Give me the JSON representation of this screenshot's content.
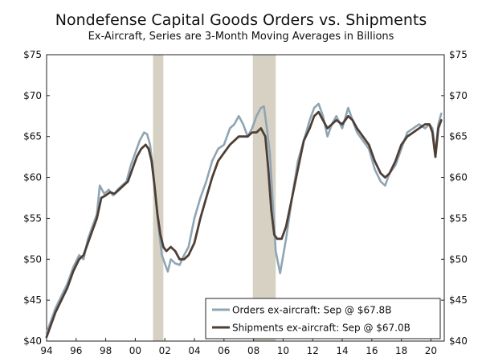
{
  "chart_data": {
    "type": "line",
    "title": "Nondefense Capital Goods Orders vs. Shipments",
    "subtitle": "Ex-Aircraft, Series are 3-Month Moving Averages in Billions",
    "xlabel": "",
    "ylabel": "",
    "xlim": [
      1994,
      2020.9
    ],
    "ylim": [
      40,
      75
    ],
    "y_ticks": [
      40,
      45,
      50,
      55,
      60,
      65,
      70,
      75
    ],
    "y_tick_labels": [
      "$40",
      "$45",
      "$50",
      "$55",
      "$60",
      "$65",
      "$70",
      "$75"
    ],
    "x_ticks": [
      1994,
      1996,
      1998,
      2000,
      2002,
      2004,
      2006,
      2008,
      2010,
      2012,
      2014,
      2016,
      2018,
      2020
    ],
    "x_tick_labels": [
      "94",
      "96",
      "98",
      "00",
      "02",
      "04",
      "06",
      "08",
      "10",
      "12",
      "14",
      "16",
      "18",
      "20"
    ],
    "recessions": [
      [
        2001.2,
        2001.9
      ],
      [
        2007.95,
        2009.5
      ]
    ],
    "legend_position": "bottom-right",
    "series": [
      {
        "name": "Orders ex-aircraft: Sep @ $67.8B",
        "color": "#8fa5b4",
        "x": [
          1994.0,
          1994.3,
          1994.6,
          1995.0,
          1995.4,
          1995.8,
          1996.2,
          1996.5,
          1996.8,
          1997.1,
          1997.4,
          1997.6,
          1997.9,
          1998.2,
          1998.5,
          1998.8,
          1999.1,
          1999.4,
          1999.7,
          2000.0,
          2000.3,
          2000.6,
          2000.8,
          2001.0,
          2001.2,
          2001.4,
          2001.6,
          2001.8,
          2002.0,
          2002.2,
          2002.4,
          2002.7,
          2003.0,
          2003.3,
          2003.6,
          2004.0,
          2004.4,
          2004.8,
          2005.2,
          2005.6,
          2006.0,
          2006.4,
          2006.7,
          2007.0,
          2007.3,
          2007.6,
          2007.9,
          2008.2,
          2008.5,
          2008.7,
          2008.9,
          2009.1,
          2009.3,
          2009.5,
          2009.8,
          2010.2,
          2010.6,
          2011.0,
          2011.4,
          2011.8,
          2012.1,
          2012.4,
          2012.7,
          2013.0,
          2013.3,
          2013.6,
          2014.0,
          2014.4,
          2014.7,
          2015.0,
          2015.4,
          2015.8,
          2016.2,
          2016.6,
          2016.9,
          2017.2,
          2017.6,
          2018.0,
          2018.4,
          2018.8,
          2019.2,
          2019.6,
          2019.9,
          2020.1,
          2020.3,
          2020.5,
          2020.7
        ],
        "values": [
          41.0,
          42.5,
          44.0,
          45.5,
          47.0,
          49.0,
          50.5,
          50.0,
          52.5,
          54.0,
          55.5,
          59.0,
          58.0,
          58.5,
          57.8,
          58.5,
          59.0,
          59.5,
          61.5,
          63.0,
          64.5,
          65.5,
          65.3,
          64.0,
          61.0,
          57.0,
          53.5,
          50.5,
          49.5,
          48.5,
          50.0,
          49.5,
          49.3,
          50.5,
          51.5,
          55.0,
          57.5,
          59.5,
          62.0,
          63.5,
          64.0,
          66.0,
          66.5,
          67.5,
          66.5,
          65.0,
          66.0,
          67.5,
          68.5,
          68.7,
          66.0,
          63.0,
          57.0,
          51.0,
          48.3,
          52.5,
          57.5,
          62.0,
          64.5,
          67.0,
          68.5,
          69.0,
          67.5,
          65.0,
          66.5,
          67.5,
          66.0,
          68.5,
          67.0,
          65.5,
          64.5,
          63.5,
          61.0,
          59.5,
          59.0,
          60.5,
          61.5,
          63.5,
          65.5,
          66.0,
          66.5,
          66.0,
          66.5,
          66.0,
          63.0,
          66.5,
          67.8
        ]
      },
      {
        "name": "Shipments ex-aircraft: Sep @ $67.0B",
        "color": "#4e3f36",
        "x": [
          1994.0,
          1994.3,
          1994.6,
          1995.0,
          1995.4,
          1995.8,
          1996.2,
          1996.5,
          1996.8,
          1997.1,
          1997.4,
          1997.7,
          1998.0,
          1998.3,
          1998.6,
          1998.9,
          1999.2,
          1999.5,
          1999.8,
          2000.1,
          2000.4,
          2000.7,
          2000.9,
          2001.1,
          2001.3,
          2001.5,
          2001.7,
          2001.9,
          2002.1,
          2002.4,
          2002.7,
          2003.0,
          2003.3,
          2003.6,
          2004.0,
          2004.4,
          2004.8,
          2005.2,
          2005.6,
          2006.0,
          2006.4,
          2006.7,
          2007.0,
          2007.3,
          2007.6,
          2007.9,
          2008.2,
          2008.5,
          2008.8,
          2009.0,
          2009.2,
          2009.4,
          2009.6,
          2009.9,
          2010.2,
          2010.6,
          2011.0,
          2011.4,
          2011.8,
          2012.1,
          2012.4,
          2012.7,
          2013.0,
          2013.3,
          2013.6,
          2014.0,
          2014.4,
          2014.7,
          2015.0,
          2015.4,
          2015.8,
          2016.2,
          2016.6,
          2016.9,
          2017.2,
          2017.6,
          2018.0,
          2018.4,
          2018.8,
          2019.2,
          2019.6,
          2019.9,
          2020.1,
          2020.3,
          2020.5,
          2020.7
        ],
        "values": [
          40.5,
          42.0,
          43.5,
          45.0,
          46.5,
          48.5,
          50.0,
          50.5,
          52.0,
          53.5,
          55.0,
          57.5,
          57.8,
          58.2,
          58.0,
          58.5,
          59.0,
          59.5,
          61.0,
          62.5,
          63.5,
          64.0,
          63.5,
          62.0,
          59.0,
          55.5,
          53.0,
          51.5,
          51.0,
          51.5,
          51.0,
          50.0,
          50.0,
          50.5,
          52.0,
          55.0,
          57.5,
          60.0,
          62.0,
          63.0,
          64.0,
          64.5,
          65.0,
          65.0,
          65.0,
          65.5,
          65.5,
          66.0,
          65.0,
          61.0,
          56.0,
          53.0,
          52.5,
          52.5,
          54.0,
          57.5,
          61.0,
          64.5,
          66.0,
          67.5,
          68.0,
          67.0,
          66.0,
          66.5,
          67.0,
          66.5,
          67.5,
          67.0,
          66.0,
          65.0,
          64.0,
          62.0,
          60.5,
          60.0,
          60.5,
          62.0,
          64.0,
          65.0,
          65.5,
          66.0,
          66.5,
          66.5,
          65.5,
          62.5,
          66.0,
          67.0
        ]
      }
    ]
  }
}
